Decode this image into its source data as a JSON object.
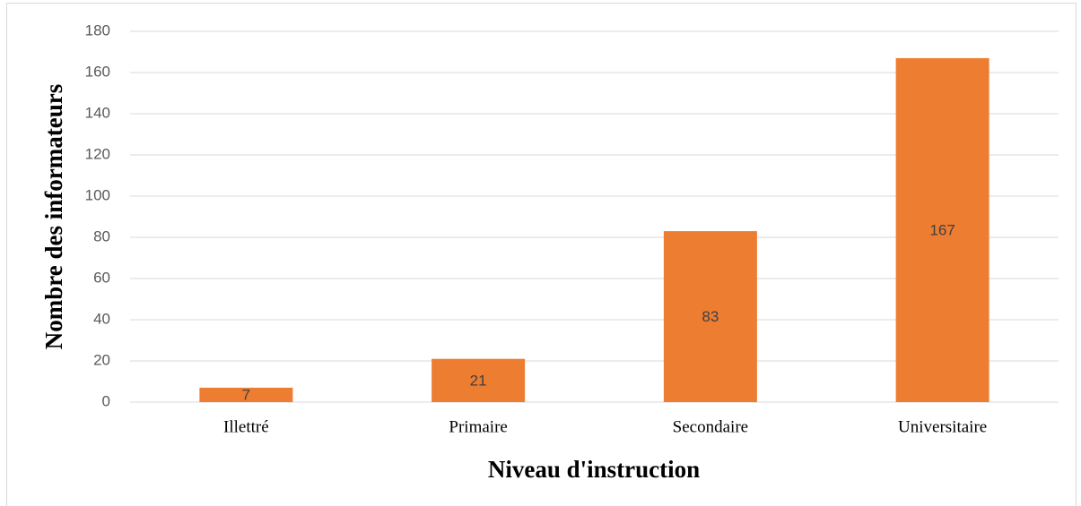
{
  "chart_data": {
    "type": "bar",
    "x_label": "Niveau d'instruction",
    "y_label": "Nombre des informateurs",
    "categories": [
      "Illettré",
      "Primaire",
      "Secondaire",
      "Universitaire"
    ],
    "values": [
      7,
      21,
      83,
      167
    ],
    "color": "#ed7d31",
    "ylim": [
      0,
      180
    ],
    "yticks": [
      0,
      20,
      40,
      60,
      80,
      100,
      120,
      140,
      160,
      180
    ],
    "grid": true
  }
}
